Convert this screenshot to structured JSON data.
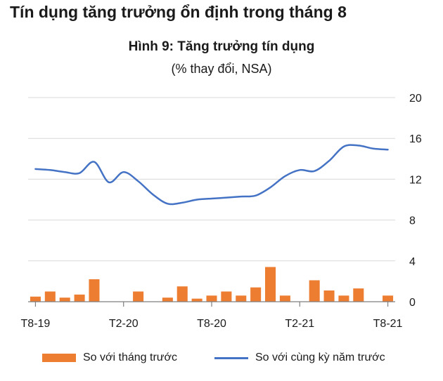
{
  "heading": "Tín dụng tăng trưởng ổn định trong tháng 8",
  "chart_data": {
    "type": "bar+line",
    "title": "Hình 9: Tăng trưởng tín dụng",
    "subtitle": "(% thay đổi, NSA)",
    "ylim": [
      0,
      20
    ],
    "yticks": [
      "0",
      "4",
      "8",
      "12",
      "16",
      "20"
    ],
    "y_axis_side": "right",
    "grid": true,
    "legend_position": "bottom",
    "x_tick_labels": [
      {
        "label": "T8-19",
        "index": 0
      },
      {
        "label": "T2-20",
        "index": 6
      },
      {
        "label": "T8-20",
        "index": 12
      },
      {
        "label": "T2-21",
        "index": 18
      },
      {
        "label": "T8-21",
        "index": 24
      }
    ],
    "series": [
      {
        "name": "So với tháng trước",
        "type": "bar",
        "color": "#ED7D31",
        "values": [
          0.5,
          1.0,
          0.4,
          0.7,
          2.2,
          0.0,
          0.0,
          1.0,
          0.0,
          0.4,
          1.5,
          0.3,
          0.6,
          1.0,
          0.6,
          1.4,
          3.4,
          0.6,
          0.0,
          2.1,
          1.1,
          0.6,
          1.3,
          0.0,
          0.6
        ]
      },
      {
        "name": "So với cùng kỳ năm trước",
        "type": "line",
        "color": "#4472C4",
        "values": [
          13.0,
          12.9,
          12.7,
          12.6,
          13.7,
          11.7,
          12.7,
          11.8,
          10.5,
          9.6,
          9.7,
          10.0,
          10.1,
          10.2,
          10.3,
          10.4,
          11.2,
          12.3,
          12.9,
          12.8,
          13.8,
          15.2,
          15.3,
          15.0,
          14.9
        ]
      }
    ]
  }
}
